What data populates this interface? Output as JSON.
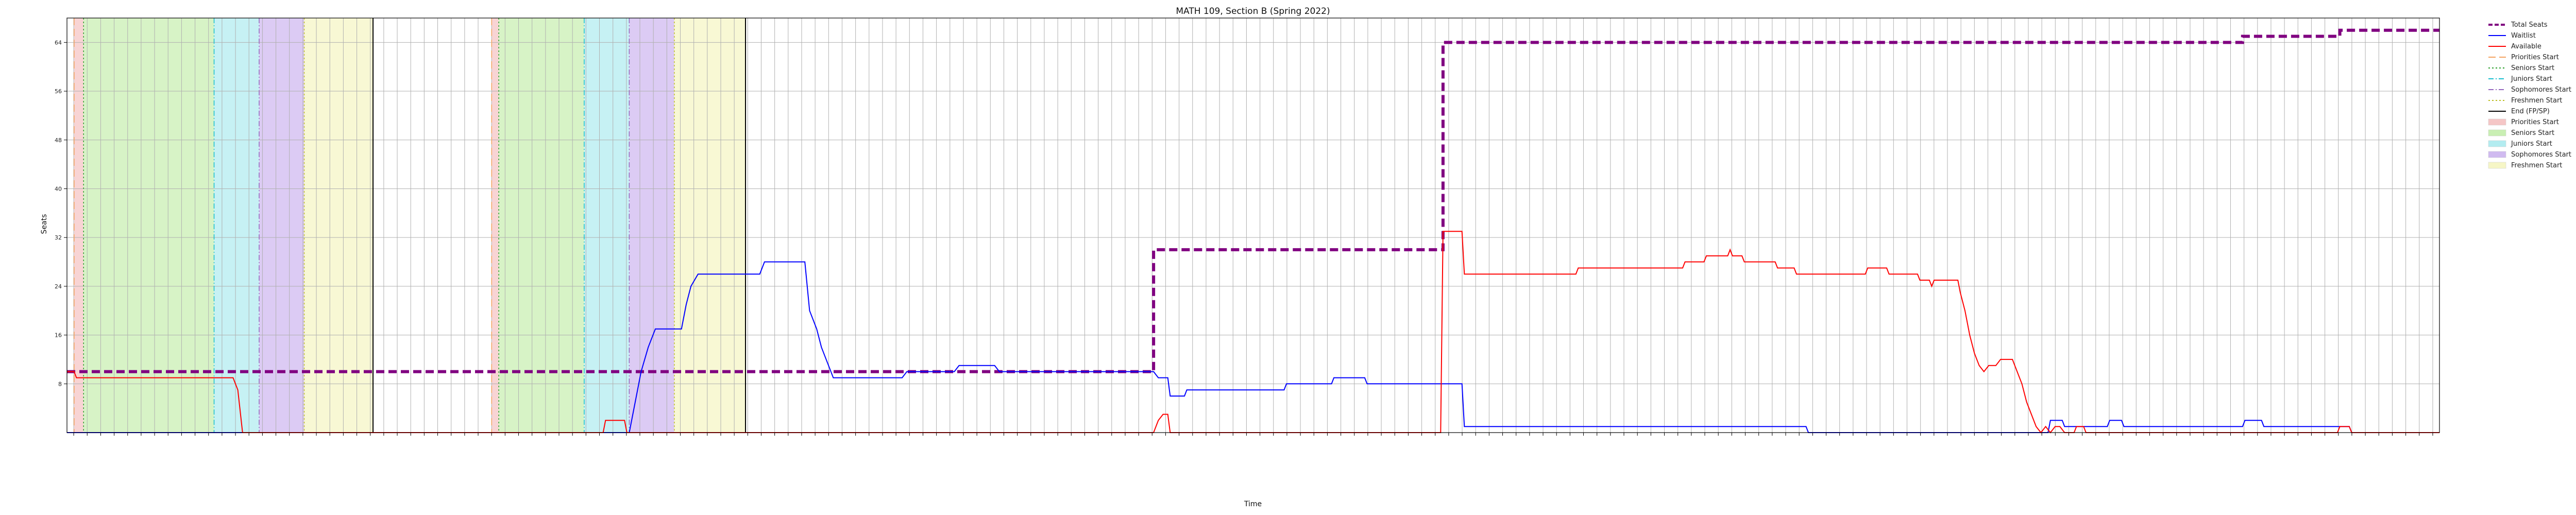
{
  "chart_data": {
    "type": "line",
    "title": "MATH 109, Section B (Spring 2022)",
    "xlabel": "Time",
    "ylabel": "Seats",
    "ylim": [
      0,
      68
    ],
    "yticks": [
      8,
      16,
      24,
      32,
      40,
      48,
      56,
      64
    ],
    "grid": true,
    "legend_placement": "outside-top-right",
    "x_tick_count": 176,
    "x_tick_labels_legible": false,
    "series": [
      {
        "name": "Total Seats",
        "color": "#800080",
        "style": "dashed",
        "points": [
          [
            0,
            10
          ],
          [
            0.007,
            10
          ],
          [
            0.007,
            10
          ],
          [
            0.458,
            10
          ],
          [
            0.458,
            30
          ],
          [
            0.58,
            30
          ],
          [
            0.58,
            64
          ],
          [
            0.917,
            64
          ],
          [
            0.917,
            65
          ],
          [
            0.958,
            65
          ],
          [
            0.958,
            66
          ],
          [
            1.0,
            66
          ]
        ]
      },
      {
        "name": "Waitlist",
        "color": "#0000ff",
        "style": "solid",
        "points": [
          [
            0,
            0
          ],
          [
            0.237,
            0
          ],
          [
            0.238,
            2
          ],
          [
            0.24,
            6
          ],
          [
            0.242,
            10
          ],
          [
            0.245,
            14
          ],
          [
            0.248,
            17
          ],
          [
            0.259,
            17
          ],
          [
            0.261,
            21
          ],
          [
            0.263,
            24
          ],
          [
            0.266,
            26
          ],
          [
            0.292,
            26
          ],
          [
            0.293,
            27
          ],
          [
            0.294,
            28
          ],
          [
            0.311,
            28
          ],
          [
            0.313,
            20
          ],
          [
            0.316,
            17
          ],
          [
            0.318,
            14
          ],
          [
            0.321,
            11
          ],
          [
            0.323,
            9
          ],
          [
            0.352,
            9
          ],
          [
            0.354,
            10
          ],
          [
            0.374,
            10
          ],
          [
            0.376,
            11
          ],
          [
            0.391,
            11
          ],
          [
            0.393,
            10
          ],
          [
            0.458,
            10
          ],
          [
            0.46,
            9
          ],
          [
            0.464,
            9
          ],
          [
            0.465,
            6
          ],
          [
            0.471,
            6
          ],
          [
            0.472,
            7
          ],
          [
            0.513,
            7
          ],
          [
            0.514,
            8
          ],
          [
            0.533,
            8
          ],
          [
            0.534,
            9
          ],
          [
            0.547,
            9
          ],
          [
            0.548,
            8
          ],
          [
            0.588,
            8
          ],
          [
            0.589,
            1
          ],
          [
            0.733,
            1
          ],
          [
            0.734,
            0
          ],
          [
            0.835,
            0
          ],
          [
            0.836,
            2
          ],
          [
            0.841,
            2
          ],
          [
            0.842,
            1
          ],
          [
            0.86,
            1
          ],
          [
            0.861,
            2
          ],
          [
            0.866,
            2
          ],
          [
            0.867,
            1
          ],
          [
            0.917,
            1
          ],
          [
            0.918,
            2
          ],
          [
            0.925,
            2
          ],
          [
            0.926,
            1
          ],
          [
            0.962,
            1
          ],
          [
            0.963,
            0
          ],
          [
            1.0,
            0
          ]
        ]
      },
      {
        "name": "Available",
        "color": "#ff0000",
        "style": "solid",
        "points": [
          [
            0,
            10
          ],
          [
            0.003,
            10
          ],
          [
            0.004,
            9
          ],
          [
            0.07,
            9
          ],
          [
            0.072,
            7
          ],
          [
            0.074,
            0
          ],
          [
            0.226,
            0
          ],
          [
            0.227,
            2
          ],
          [
            0.235,
            2
          ],
          [
            0.236,
            0
          ],
          [
            0.458,
            0
          ],
          [
            0.46,
            2
          ],
          [
            0.462,
            3
          ],
          [
            0.464,
            3
          ],
          [
            0.465,
            0
          ],
          [
            0.579,
            0
          ],
          [
            0.58,
            33
          ],
          [
            0.588,
            33
          ],
          [
            0.589,
            26
          ],
          [
            0.636,
            26
          ],
          [
            0.637,
            27
          ],
          [
            0.681,
            27
          ],
          [
            0.682,
            28
          ],
          [
            0.69,
            28
          ],
          [
            0.691,
            29
          ],
          [
            0.7,
            29
          ],
          [
            0.701,
            30
          ],
          [
            0.702,
            29
          ],
          [
            0.706,
            29
          ],
          [
            0.707,
            28
          ],
          [
            0.72,
            28
          ],
          [
            0.721,
            27
          ],
          [
            0.728,
            27
          ],
          [
            0.729,
            26
          ],
          [
            0.758,
            26
          ],
          [
            0.759,
            27
          ],
          [
            0.767,
            27
          ],
          [
            0.768,
            26
          ],
          [
            0.78,
            26
          ],
          [
            0.781,
            25
          ],
          [
            0.785,
            25
          ],
          [
            0.786,
            24
          ],
          [
            0.787,
            25
          ],
          [
            0.797,
            25
          ],
          [
            0.798,
            23
          ],
          [
            0.8,
            20
          ],
          [
            0.802,
            16
          ],
          [
            0.804,
            13
          ],
          [
            0.806,
            11
          ],
          [
            0.808,
            10
          ],
          [
            0.81,
            11
          ],
          [
            0.813,
            11
          ],
          [
            0.815,
            12
          ],
          [
            0.82,
            12
          ],
          [
            0.822,
            10
          ],
          [
            0.824,
            8
          ],
          [
            0.826,
            5
          ],
          [
            0.828,
            3
          ],
          [
            0.83,
            1
          ],
          [
            0.832,
            0
          ],
          [
            0.834,
            1
          ],
          [
            0.836,
            0
          ],
          [
            0.838,
            1
          ],
          [
            0.84,
            1
          ],
          [
            0.842,
            0
          ],
          [
            0.846,
            0
          ],
          [
            0.847,
            1
          ],
          [
            0.85,
            1
          ],
          [
            0.851,
            0
          ],
          [
            0.957,
            0
          ],
          [
            0.958,
            1
          ],
          [
            0.962,
            1
          ],
          [
            0.963,
            0
          ],
          [
            1.0,
            0
          ]
        ]
      }
    ],
    "vertical_lines": [
      {
        "name": "Priorities Start",
        "positions": [
          0.003,
          0.179
        ],
        "color": "#f4a460",
        "style": "dashed"
      },
      {
        "name": "Seniors Start",
        "positions": [
          0.007,
          0.182
        ],
        "color": "#2ca02c",
        "style": "dotted"
      },
      {
        "name": "Juniors Start",
        "positions": [
          0.062,
          0.218
        ],
        "color": "#17becf",
        "style": "dashdot"
      },
      {
        "name": "Sophomores Start",
        "positions": [
          0.081,
          0.237
        ],
        "color": "#9467bd",
        "style": "dashdot"
      },
      {
        "name": "Freshmen Start",
        "positions": [
          0.1,
          0.256
        ],
        "color": "#bcbd22",
        "style": "dotted"
      },
      {
        "name": "End (FP/SP)",
        "positions": [
          0.129,
          0.286
        ],
        "color": "#000000",
        "style": "solid"
      }
    ],
    "shaded_regions": [
      {
        "name": "Priorities Start",
        "color": "#f5c6c6",
        "ranges": [
          [
            0.003,
            0.007
          ],
          [
            0.179,
            0.182
          ]
        ]
      },
      {
        "name": "Seniors Start",
        "color": "#c9efb3",
        "ranges": [
          [
            0.007,
            0.062
          ],
          [
            0.182,
            0.218
          ]
        ]
      },
      {
        "name": "Juniors Start",
        "color": "#b3ecf0",
        "ranges": [
          [
            0.062,
            0.081
          ],
          [
            0.218,
            0.237
          ]
        ]
      },
      {
        "name": "Sophomores Start",
        "color": "#d0baf0",
        "ranges": [
          [
            0.081,
            0.1
          ],
          [
            0.237,
            0.256
          ]
        ]
      },
      {
        "name": "Freshmen Start",
        "color": "#f6f6c6",
        "ranges": [
          [
            0.1,
            0.129
          ],
          [
            0.256,
            0.286
          ]
        ]
      }
    ],
    "legend": [
      {
        "label": "Total Seats",
        "kind": "line",
        "color": "#800080",
        "style": "dashed"
      },
      {
        "label": "Waitlist",
        "kind": "line",
        "color": "#0000ff",
        "style": "solid"
      },
      {
        "label": "Available",
        "kind": "line",
        "color": "#ff0000",
        "style": "solid"
      },
      {
        "label": "Priorities Start",
        "kind": "line",
        "color": "#f4a460",
        "style": "dashed"
      },
      {
        "label": "Seniors Start",
        "kind": "line",
        "color": "#2ca02c",
        "style": "dotted"
      },
      {
        "label": "Juniors Start",
        "kind": "line",
        "color": "#17becf",
        "style": "dashdot"
      },
      {
        "label": "Sophomores Start",
        "kind": "line",
        "color": "#9467bd",
        "style": "dashdot"
      },
      {
        "label": "Freshmen Start",
        "kind": "line",
        "color": "#bcbd22",
        "style": "dotted"
      },
      {
        "label": "End (FP/SP)",
        "kind": "line",
        "color": "#000000",
        "style": "solid"
      },
      {
        "label": "Priorities Start",
        "kind": "patch",
        "color": "#f5c6c6"
      },
      {
        "label": "Seniors Start",
        "kind": "patch",
        "color": "#c9efb3"
      },
      {
        "label": "Juniors Start",
        "kind": "patch",
        "color": "#b3ecf0"
      },
      {
        "label": "Sophomores Start",
        "kind": "patch",
        "color": "#d0baf0"
      },
      {
        "label": "Freshmen Start",
        "kind": "patch",
        "color": "#f6f6c6"
      }
    ]
  }
}
